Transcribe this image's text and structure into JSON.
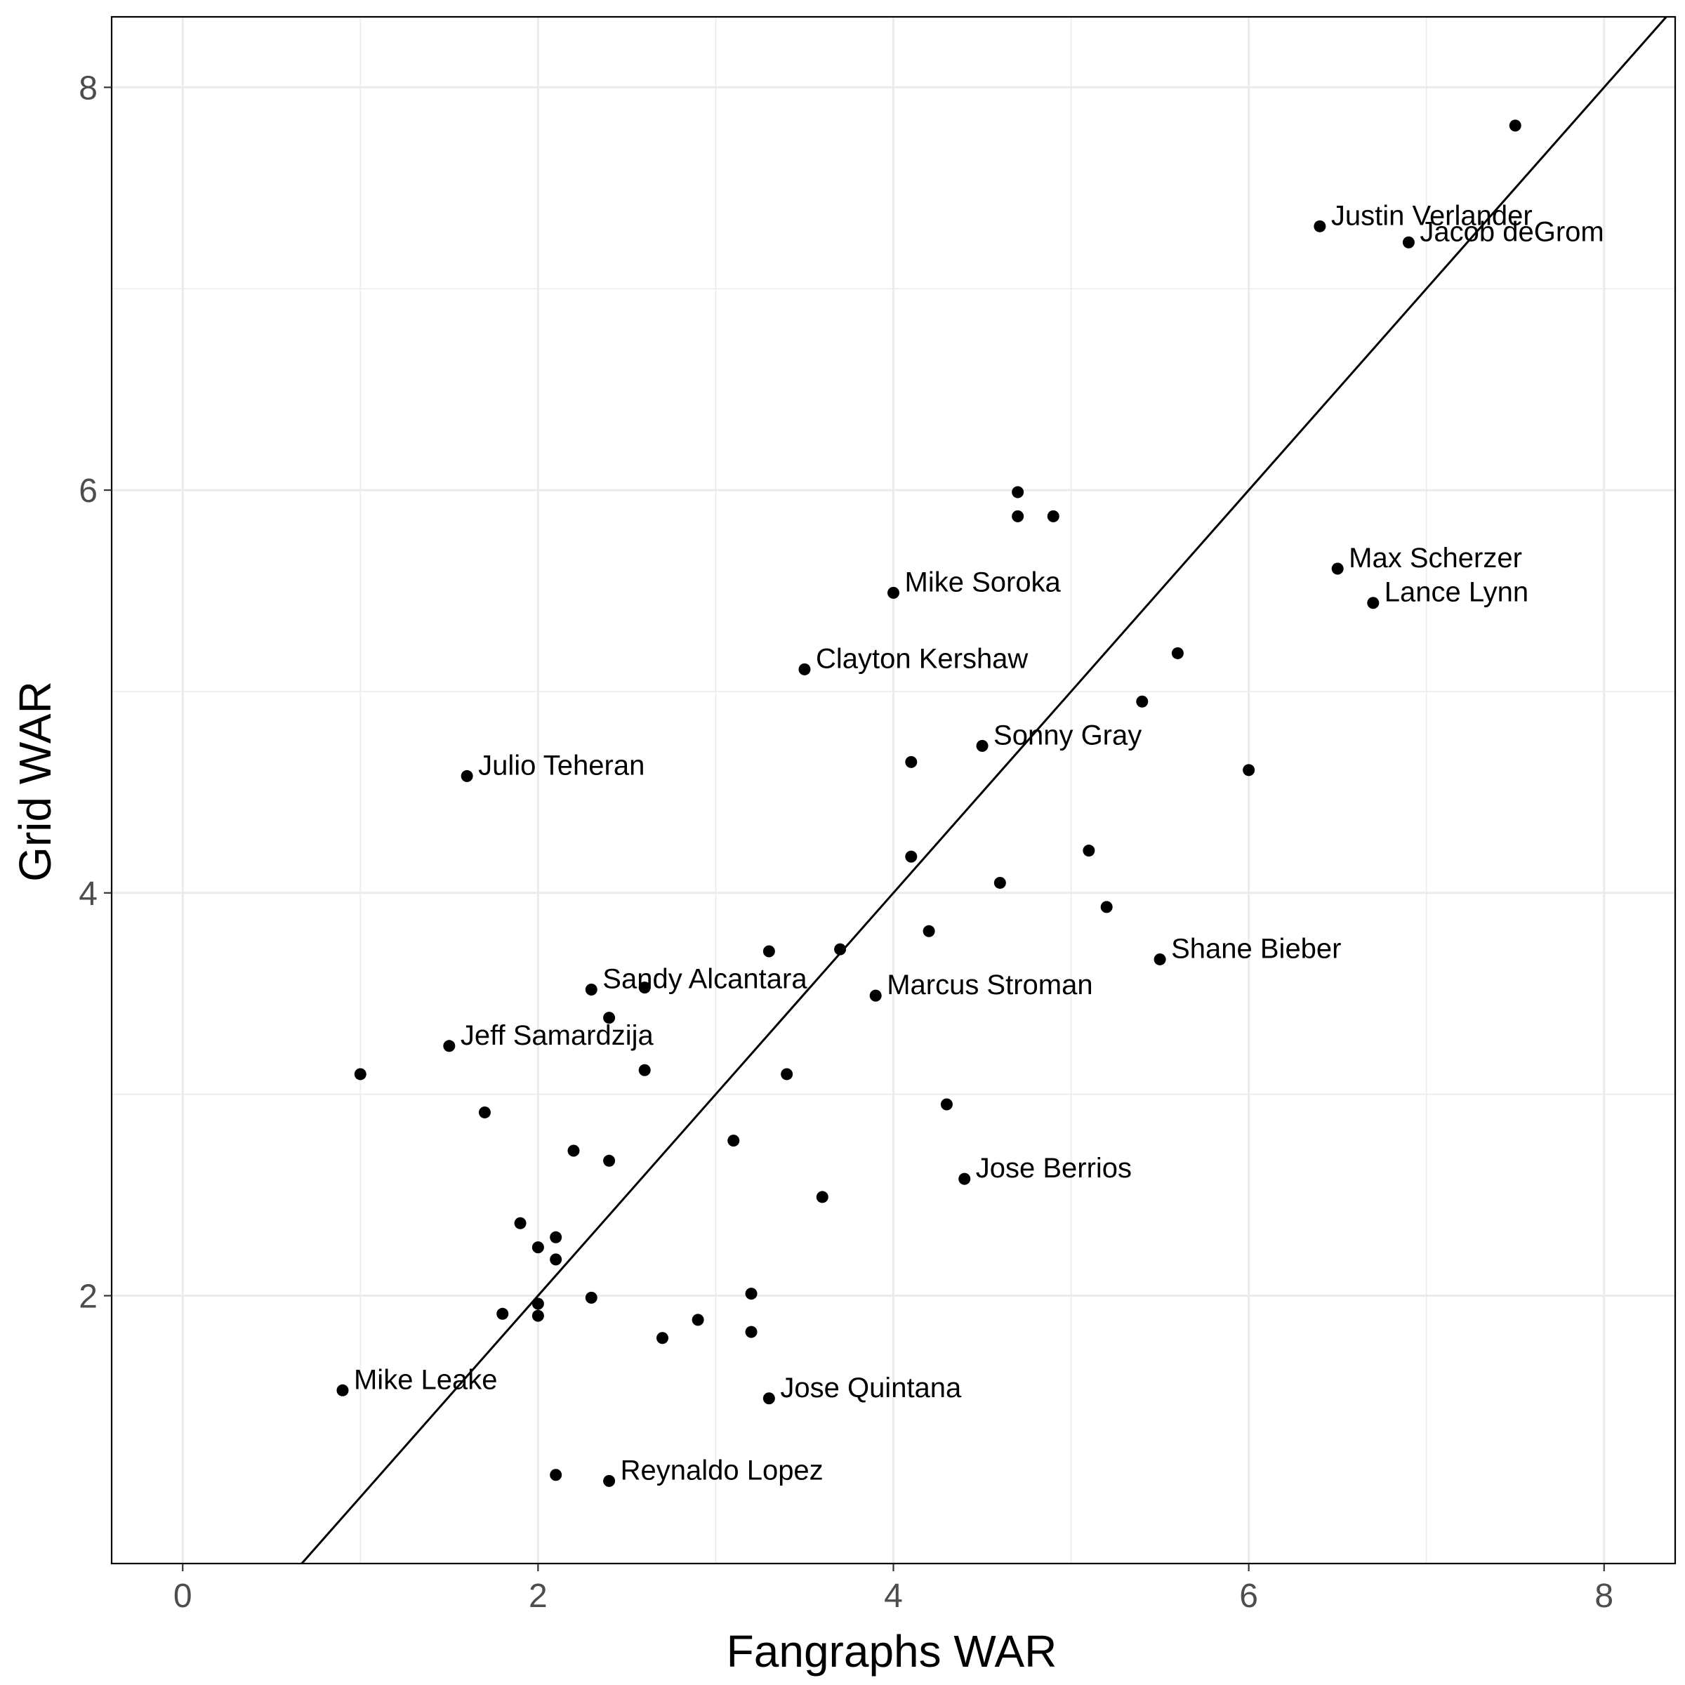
{
  "chart_data": {
    "type": "scatter",
    "xlabel": "Fangraphs WAR",
    "ylabel": "Grid WAR",
    "xlim": [
      -0.4,
      8.4
    ],
    "ylim": [
      0.67,
      8.35
    ],
    "x_ticks": [
      0,
      2,
      4,
      6,
      8
    ],
    "y_ticks": [
      2,
      4,
      6,
      8
    ],
    "x_tick_labels": [
      "0",
      "2",
      "4",
      "6",
      "8"
    ],
    "y_tick_labels": [
      "2",
      "4",
      "6",
      "8"
    ],
    "grid": true,
    "legend": "none",
    "reference_line": {
      "type": "identity",
      "slope": 1,
      "intercept": 0
    },
    "points": [
      {
        "x": 7.5,
        "y": 7.81,
        "label": ""
      },
      {
        "x": 6.4,
        "y": 7.31,
        "label": "Justin Verlander"
      },
      {
        "x": 6.9,
        "y": 7.23,
        "label": "Jacob deGrom"
      },
      {
        "x": 4.7,
        "y": 5.99,
        "label": ""
      },
      {
        "x": 4.7,
        "y": 5.87,
        "label": ""
      },
      {
        "x": 4.9,
        "y": 5.87,
        "label": ""
      },
      {
        "x": 6.5,
        "y": 5.61,
        "label": "Max Scherzer"
      },
      {
        "x": 6.7,
        "y": 5.44,
        "label": "Lance Lynn"
      },
      {
        "x": 4.0,
        "y": 5.49,
        "label": "Mike Soroka"
      },
      {
        "x": 5.6,
        "y": 5.19,
        "label": ""
      },
      {
        "x": 3.5,
        "y": 5.11,
        "label": "Clayton Kershaw"
      },
      {
        "x": 5.4,
        "y": 4.95,
        "label": ""
      },
      {
        "x": 4.5,
        "y": 4.73,
        "label": "Sonny Gray"
      },
      {
        "x": 4.1,
        "y": 4.65,
        "label": ""
      },
      {
        "x": 6.0,
        "y": 4.61,
        "label": ""
      },
      {
        "x": 1.6,
        "y": 4.58,
        "label": "Julio Teheran"
      },
      {
        "x": 5.1,
        "y": 4.21,
        "label": ""
      },
      {
        "x": 4.1,
        "y": 4.18,
        "label": ""
      },
      {
        "x": 4.6,
        "y": 4.05,
        "label": ""
      },
      {
        "x": 5.2,
        "y": 3.93,
        "label": ""
      },
      {
        "x": 4.2,
        "y": 3.81,
        "label": ""
      },
      {
        "x": 3.3,
        "y": 3.71,
        "label": ""
      },
      {
        "x": 3.7,
        "y": 3.72,
        "label": ""
      },
      {
        "x": 5.5,
        "y": 3.67,
        "label": "Shane Bieber"
      },
      {
        "x": 2.3,
        "y": 3.52,
        "label": "Sandy Alcantara"
      },
      {
        "x": 2.6,
        "y": 3.53,
        "label": ""
      },
      {
        "x": 3.9,
        "y": 3.49,
        "label": "Marcus Stroman"
      },
      {
        "x": 2.4,
        "y": 3.38,
        "label": ""
      },
      {
        "x": 1.5,
        "y": 3.24,
        "label": "Jeff Samardzija"
      },
      {
        "x": 1.0,
        "y": 3.1,
        "label": ""
      },
      {
        "x": 2.6,
        "y": 3.12,
        "label": ""
      },
      {
        "x": 3.4,
        "y": 3.1,
        "label": ""
      },
      {
        "x": 1.7,
        "y": 2.91,
        "label": ""
      },
      {
        "x": 4.3,
        "y": 2.95,
        "label": ""
      },
      {
        "x": 3.1,
        "y": 2.77,
        "label": ""
      },
      {
        "x": 2.2,
        "y": 2.72,
        "label": ""
      },
      {
        "x": 2.4,
        "y": 2.67,
        "label": ""
      },
      {
        "x": 4.4,
        "y": 2.58,
        "label": "Jose Berrios"
      },
      {
        "x": 3.6,
        "y": 2.49,
        "label": ""
      },
      {
        "x": 1.9,
        "y": 2.36,
        "label": ""
      },
      {
        "x": 2.1,
        "y": 2.29,
        "label": ""
      },
      {
        "x": 2.0,
        "y": 2.24,
        "label": ""
      },
      {
        "x": 2.1,
        "y": 2.18,
        "label": ""
      },
      {
        "x": 3.2,
        "y": 2.01,
        "label": ""
      },
      {
        "x": 2.3,
        "y": 1.99,
        "label": ""
      },
      {
        "x": 2.0,
        "y": 1.96,
        "label": ""
      },
      {
        "x": 1.8,
        "y": 1.91,
        "label": ""
      },
      {
        "x": 2.0,
        "y": 1.9,
        "label": ""
      },
      {
        "x": 2.9,
        "y": 1.88,
        "label": ""
      },
      {
        "x": 3.2,
        "y": 1.82,
        "label": ""
      },
      {
        "x": 2.7,
        "y": 1.79,
        "label": ""
      },
      {
        "x": 0.9,
        "y": 1.53,
        "label": "Mike Leake"
      },
      {
        "x": 3.3,
        "y": 1.49,
        "label": "Jose Quintana"
      },
      {
        "x": 2.1,
        "y": 1.11,
        "label": ""
      },
      {
        "x": 2.4,
        "y": 1.08,
        "label": "Reynaldo Lopez"
      }
    ]
  }
}
